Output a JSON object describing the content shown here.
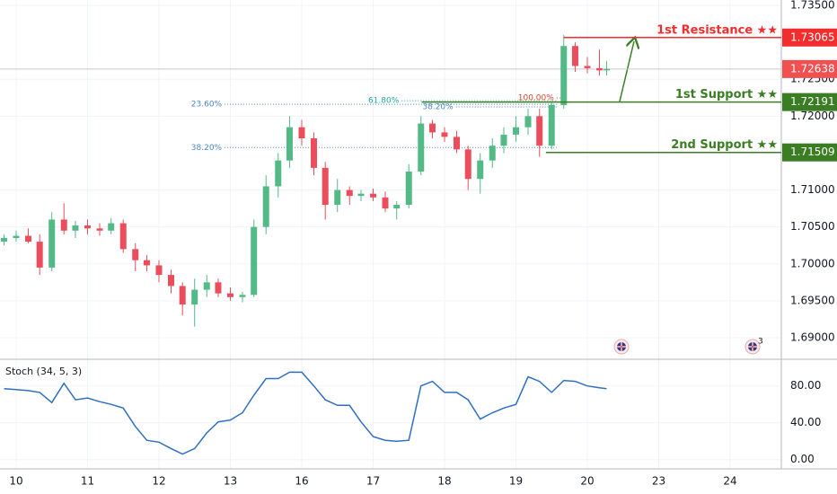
{
  "chart_data": [
    {
      "type": "candlestick",
      "x": [
        -0.17,
        0,
        0.17,
        0.33,
        0.5,
        0.67,
        0.83,
        1,
        1.17,
        1.33,
        1.5,
        1.67,
        1.83,
        2,
        2.17,
        2.33,
        2.5,
        2.67,
        2.83,
        3,
        3.17,
        3.33,
        3.5,
        3.67,
        3.83,
        4,
        4.17,
        4.33,
        4.5,
        4.67,
        4.83,
        5,
        5.17,
        5.33,
        5.5,
        5.67,
        5.83,
        6,
        6.17,
        6.33,
        6.5,
        6.67,
        6.83,
        7,
        7.17,
        7.33,
        7.5,
        7.67,
        7.83,
        8,
        8.17,
        8.27
      ],
      "ohlc": [
        [
          1.703,
          1.704,
          1.7025,
          1.7035
        ],
        [
          1.7035,
          1.7045,
          1.703,
          1.7038
        ],
        [
          1.7038,
          1.7048,
          1.7028,
          1.703
        ],
        [
          1.703,
          1.704,
          1.6985,
          1.6995
        ],
        [
          1.6995,
          1.707,
          1.699,
          1.706
        ],
        [
          1.706,
          1.7082,
          1.704,
          1.7045
        ],
        [
          1.7045,
          1.7058,
          1.7035,
          1.7052
        ],
        [
          1.7052,
          1.706,
          1.704,
          1.7048
        ],
        [
          1.7048,
          1.7055,
          1.7038,
          1.7045
        ],
        [
          1.7045,
          1.7062,
          1.704,
          1.7055
        ],
        [
          1.7055,
          1.706,
          1.7015,
          1.702
        ],
        [
          1.702,
          1.7028,
          1.699,
          1.7005
        ],
        [
          1.7005,
          1.7012,
          1.699,
          1.6998
        ],
        [
          1.6998,
          1.7005,
          1.6975,
          1.6985
        ],
        [
          1.6985,
          1.6992,
          1.696,
          1.697
        ],
        [
          1.697,
          1.6975,
          1.693,
          1.6945
        ],
        [
          1.6945,
          1.698,
          1.6915,
          1.6965
        ],
        [
          1.6965,
          1.6985,
          1.6955,
          1.6975
        ],
        [
          1.6975,
          1.698,
          1.6955,
          1.696
        ],
        [
          1.696,
          1.6968,
          1.695,
          1.6955
        ],
        [
          1.6955,
          1.6962,
          1.6948,
          1.6958
        ],
        [
          1.6958,
          1.706,
          1.6955,
          1.705
        ],
        [
          1.705,
          1.712,
          1.704,
          1.7105
        ],
        [
          1.7105,
          1.715,
          1.709,
          1.714
        ],
        [
          1.714,
          1.72,
          1.713,
          1.7185
        ],
        [
          1.7185,
          1.7195,
          1.716,
          1.717
        ],
        [
          1.717,
          1.7178,
          1.712,
          1.713
        ],
        [
          1.713,
          1.7138,
          1.706,
          1.708
        ],
        [
          1.708,
          1.7115,
          1.707,
          1.71
        ],
        [
          1.71,
          1.7105,
          1.708,
          1.7092
        ],
        [
          1.7092,
          1.71,
          1.7085,
          1.7095
        ],
        [
          1.7095,
          1.7102,
          1.7085,
          1.709
        ],
        [
          1.709,
          1.7098,
          1.707,
          1.7075
        ],
        [
          1.7075,
          1.7085,
          1.706,
          1.708
        ],
        [
          1.708,
          1.7135,
          1.7075,
          1.7125
        ],
        [
          1.7125,
          1.72,
          1.712,
          1.719
        ],
        [
          1.719,
          1.7195,
          1.717,
          1.7178
        ],
        [
          1.7178,
          1.7185,
          1.7165,
          1.7172
        ],
        [
          1.7172,
          1.718,
          1.715,
          1.7155
        ],
        [
          1.7155,
          1.716,
          1.71,
          1.7115
        ],
        [
          1.7115,
          1.715,
          1.7095,
          1.714
        ],
        [
          1.714,
          1.717,
          1.713,
          1.716
        ],
        [
          1.716,
          1.7185,
          1.715,
          1.7175
        ],
        [
          1.7175,
          1.72,
          1.7165,
          1.7185
        ],
        [
          1.7185,
          1.721,
          1.7175,
          1.72
        ],
        [
          1.72,
          1.721,
          1.7145,
          1.716
        ],
        [
          1.716,
          1.722,
          1.7155,
          1.7215
        ],
        [
          1.7215,
          1.731,
          1.721,
          1.7295
        ],
        [
          1.7295,
          1.73,
          1.726,
          1.7268
        ],
        [
          1.7268,
          1.728,
          1.7258,
          1.7265
        ],
        [
          1.7265,
          1.729,
          1.7255,
          1.7262
        ],
        [
          1.7262,
          1.7275,
          1.7255,
          1.7264
        ]
      ],
      "up_color": "#53b987",
      "down_color": "#eb4d5c",
      "xlim": [
        -0.226,
        10.717
      ],
      "xticks": [
        {
          "value": 0,
          "label": "10"
        },
        {
          "value": 1,
          "label": "11"
        },
        {
          "value": 2,
          "label": "12"
        },
        {
          "value": 3,
          "label": "13"
        },
        {
          "value": 4,
          "label": "16"
        },
        {
          "value": 5,
          "label": "17"
        },
        {
          "value": 6,
          "label": "18"
        },
        {
          "value": 7,
          "label": "19"
        },
        {
          "value": 8,
          "label": "20"
        },
        {
          "value": 9,
          "label": "23"
        },
        {
          "value": 10,
          "label": "24"
        }
      ],
      "ylim": [
        1.68708,
        1.73573
      ],
      "yticks": [
        {
          "value": 1.735,
          "label": "1.73500"
        },
        {
          "value": 1.725,
          "label": "1.72500"
        },
        {
          "value": 1.72,
          "label": "1.72000"
        },
        {
          "value": 1.71,
          "label": "1.71000"
        },
        {
          "value": 1.705,
          "label": "1.70500"
        },
        {
          "value": 1.7,
          "label": "1.70000"
        },
        {
          "value": 1.695,
          "label": "1.69500"
        },
        {
          "value": 1.69,
          "label": "1.69000"
        }
      ],
      "grid": true,
      "last_price": {
        "value": 1.72638,
        "color": "#f0504f"
      },
      "levels": [
        {
          "label": "1st Resistance ★★",
          "value": 1.73065,
          "x0": 7.67,
          "color": "#f22d2d"
        },
        {
          "label": "1st Support ★★",
          "value": 1.72191,
          "x0": 5.68,
          "color": "#3a7d22"
        },
        {
          "label": "2nd Support ★★",
          "value": 1.71509,
          "x0": 7.42,
          "color": "#3a7d22"
        }
      ],
      "fibs": [
        {
          "label": "23.60%",
          "value": 1.7216,
          "x0": 2.92,
          "x1": 7.57,
          "color": "#4a86c8"
        },
        {
          "label": "38.20%",
          "value": 1.71575,
          "x0": 2.92,
          "x1": 7.57,
          "color": "#4a86c8"
        },
        {
          "label": "61.80%",
          "value": 1.7221,
          "x0": 5.4,
          "x1": 7.57,
          "color": "#26a69a"
        },
        {
          "label": "38.20%",
          "value": 1.72126,
          "x0": 6.16,
          "x1": 7.57,
          "color": "#4a86c8"
        },
        {
          "label": "100.00%",
          "value": 1.72247,
          "x0": 7.57,
          "x1": 7.7,
          "color": "#d4442e"
        }
      ],
      "badge": "3"
    },
    {
      "type": "line",
      "title": "Stoch (34, 5, 3)",
      "color": "#2e6fc4",
      "x": [
        -0.17,
        0,
        0.17,
        0.33,
        0.5,
        0.67,
        0.83,
        1,
        1.17,
        1.33,
        1.5,
        1.67,
        1.83,
        2,
        2.17,
        2.33,
        2.5,
        2.67,
        2.83,
        3,
        3.17,
        3.33,
        3.5,
        3.67,
        3.83,
        4,
        4.17,
        4.33,
        4.5,
        4.67,
        4.83,
        5,
        5.17,
        5.33,
        5.5,
        5.67,
        5.83,
        6,
        6.17,
        6.33,
        6.5,
        6.67,
        6.83,
        7,
        7.17,
        7.33,
        7.5,
        7.67,
        7.83,
        8,
        8.17,
        8.27
      ],
      "values": [
        77,
        76,
        75,
        73,
        62,
        83,
        65,
        67,
        63,
        60,
        56,
        36,
        21,
        19,
        12,
        6,
        12,
        29,
        41,
        43,
        51,
        70,
        88,
        88,
        95,
        95,
        80,
        65,
        59,
        59,
        41,
        25,
        21,
        20,
        21,
        80,
        85,
        73,
        73,
        65,
        44,
        51,
        56,
        60,
        90,
        85,
        73,
        86,
        85,
        80,
        78,
        77
      ],
      "ylim": [
        -10,
        109
      ],
      "yticks": [
        {
          "value": 80,
          "label": "80.00"
        },
        {
          "value": 40,
          "label": "40.00"
        },
        {
          "value": 0,
          "label": "0.00"
        }
      ]
    }
  ]
}
